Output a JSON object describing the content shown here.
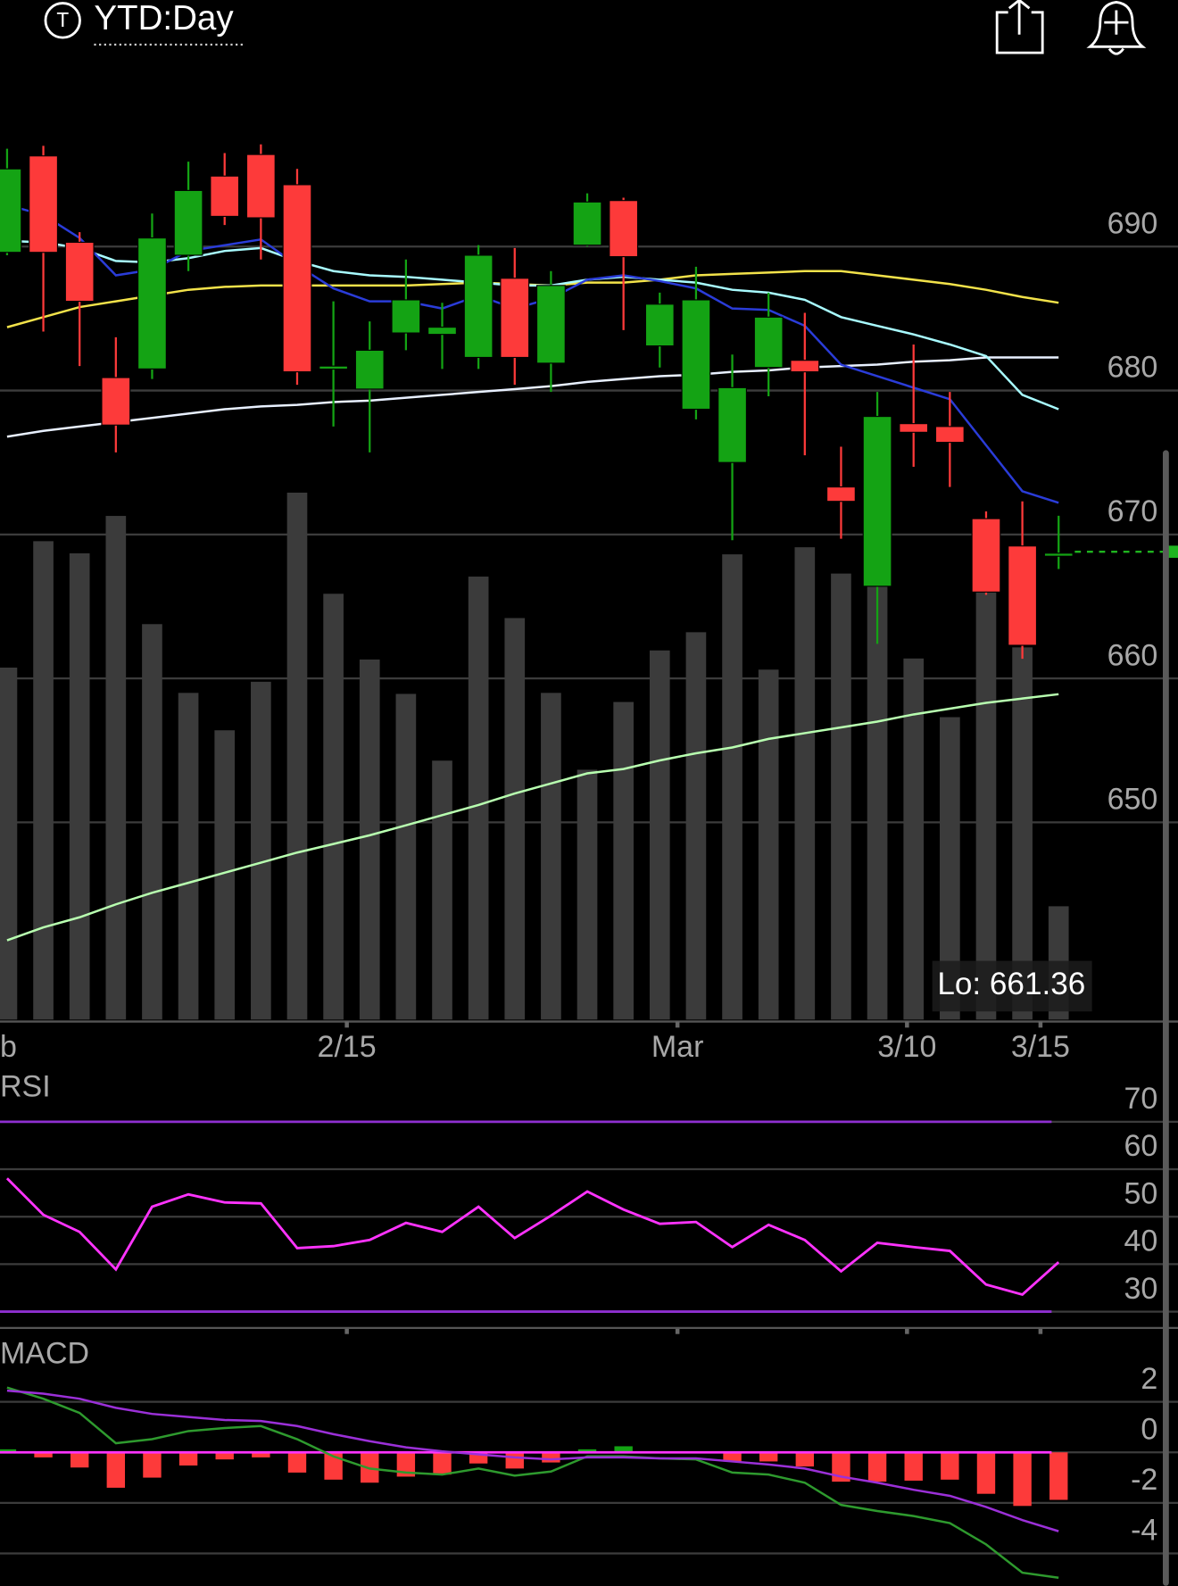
{
  "header": {
    "icon": "T",
    "title": "YTD:Day"
  },
  "chart_data": [
    {
      "type": "candlestick",
      "open": [
        689.6,
        696.3,
        690.3,
        680.9,
        681.5,
        689.4,
        694.9,
        696.4,
        694.3,
        681.6,
        680.1,
        684.0,
        683.9,
        682.3,
        687.8,
        681.9,
        690.1,
        693.2,
        683.1,
        678.7,
        675.0,
        681.6,
        682.1,
        673.3,
        666.4,
        677.7,
        677.5,
        671.1,
        669.2,
        668.6
      ],
      "high": [
        696.8,
        697.0,
        691.0,
        683.7,
        692.3,
        695.9,
        696.5,
        697.1,
        695.4,
        686.2,
        684.8,
        689.1,
        686.1,
        690.1,
        689.9,
        688.3,
        693.7,
        693.4,
        686.8,
        688.6,
        682.5,
        686.8,
        685.4,
        676.1,
        679.9,
        683.2,
        679.9,
        671.6,
        672.3,
        671.3
      ],
      "low": [
        689.4,
        684.1,
        681.7,
        675.7,
        680.8,
        688.3,
        691.5,
        689.1,
        680.4,
        677.5,
        675.7,
        682.8,
        681.5,
        681.5,
        680.4,
        679.9,
        690.0,
        684.2,
        681.6,
        678.0,
        669.6,
        679.6,
        675.5,
        669.7,
        662.4,
        674.7,
        673.3,
        665.8,
        661.36,
        667.6
      ],
      "close": [
        695.4,
        689.6,
        686.2,
        677.6,
        690.6,
        693.9,
        692.1,
        692.0,
        681.3,
        681.7,
        682.8,
        686.3,
        684.4,
        689.4,
        682.3,
        687.3,
        693.1,
        689.3,
        686.0,
        686.3,
        680.2,
        685.1,
        681.3,
        672.3,
        678.2,
        677.1,
        676.4,
        666.0,
        662.3,
        668.7
      ],
      "up_color": "#14a314",
      "down_color": "#fd3a3a",
      "volume": [
        348,
        473,
        461,
        498,
        391,
        323,
        286,
        334,
        521,
        421,
        356,
        322,
        256,
        438,
        397,
        323,
        247,
        314,
        365,
        383,
        460,
        346,
        467,
        441,
        428,
        357,
        299,
        423,
        368,
        112
      ],
      "volume_color": "#3b3b3b",
      "lines": [
        {
          "color": "#b8ffb0",
          "values": [
            641.8,
            642.7,
            643.4,
            644.3,
            645.1,
            645.8,
            646.5,
            647.2,
            647.9,
            648.5,
            649.1,
            649.8,
            650.5,
            651.2,
            652.0,
            652.7,
            653.4,
            653.7,
            654.3,
            654.8,
            655.2,
            655.8,
            656.2,
            656.6,
            657.0,
            657.5,
            657.9,
            658.3,
            658.6,
            658.9
          ]
        },
        {
          "color": "#e8f0ff",
          "values": [
            676.8,
            677.2,
            677.5,
            677.8,
            678.1,
            678.4,
            678.7,
            678.9,
            679.0,
            679.2,
            679.3,
            679.5,
            679.7,
            679.9,
            680.1,
            680.3,
            680.6,
            680.8,
            681.0,
            681.1,
            681.3,
            681.4,
            681.6,
            681.7,
            681.8,
            682.0,
            682.1,
            682.3,
            682.3,
            682.3
          ]
        },
        {
          "color": "#f2e24a",
          "values": [
            684.4,
            685.1,
            685.8,
            686.2,
            686.6,
            687.0,
            687.2,
            687.3,
            687.3,
            687.3,
            687.3,
            687.3,
            687.4,
            687.5,
            687.4,
            687.3,
            687.5,
            687.5,
            687.7,
            688.0,
            688.1,
            688.2,
            688.3,
            688.3,
            688.0,
            687.7,
            687.4,
            687.0,
            686.5,
            686.1
          ]
        },
        {
          "color": "#a8fbff",
          "values": [
            690.4,
            690.3,
            689.9,
            689.0,
            688.9,
            689.2,
            689.7,
            689.9,
            689.0,
            688.3,
            688.0,
            687.9,
            687.7,
            687.5,
            687.3,
            687.3,
            687.7,
            687.9,
            687.7,
            687.5,
            687.0,
            686.8,
            686.3,
            685.1,
            684.5,
            683.9,
            683.2,
            682.4,
            679.7,
            678.7
          ]
        },
        {
          "color": "#2a3cd8",
          "values": [
            692.9,
            692.2,
            690.6,
            688.0,
            688.4,
            689.7,
            690.1,
            690.5,
            688.7,
            687.1,
            686.2,
            686.2,
            685.7,
            686.6,
            685.7,
            686.4,
            687.7,
            688.0,
            687.6,
            687.1,
            685.7,
            685.6,
            684.5,
            681.8,
            681.0,
            680.2,
            679.4,
            676.2,
            673.0,
            672.2
          ]
        }
      ],
      "ylim": [
        636.3,
        701.5
      ],
      "yticks": [
        650,
        660,
        670,
        680,
        690
      ],
      "grid": true,
      "x_labels": [
        "b",
        "2/15",
        "Mar",
        "3/10",
        "3/15"
      ],
      "annotation": "Lo: 661.36",
      "last_price": 668.8,
      "last_color": "#1fb41f"
    },
    {
      "type": "line",
      "title": "RSI",
      "values": [
        58.1,
        50.4,
        46.8,
        38.9,
        52.1,
        54.7,
        53.0,
        52.8,
        43.4,
        43.8,
        45.1,
        48.7,
        46.8,
        52.1,
        45.5,
        50.2,
        55.3,
        51.5,
        48.5,
        48.9,
        43.6,
        48.3,
        45.1,
        38.5,
        44.5,
        43.6,
        42.8,
        35.7,
        33.6,
        40.4
      ],
      "color": "#ff33ff",
      "ylim": [
        27.2,
        79.4
      ],
      "yticks": [
        30,
        40,
        50,
        60,
        70
      ],
      "bands": [
        30,
        70
      ],
      "band_color": "#8e2fd0",
      "grid": true
    },
    {
      "type": "macd",
      "title": "MACD",
      "macd": [
        2.56,
        2.12,
        1.56,
        0.36,
        0.52,
        0.84,
        0.96,
        1.04,
        0.52,
        -0.16,
        -0.64,
        -0.8,
        -0.88,
        -0.64,
        -0.92,
        -0.76,
        -0.16,
        -0.16,
        -0.24,
        -0.28,
        -0.8,
        -0.88,
        -1.2,
        -2.08,
        -2.32,
        -2.52,
        -2.8,
        -3.64,
        -4.76,
        -4.96
      ],
      "signal": [
        2.44,
        2.32,
        2.12,
        1.76,
        1.52,
        1.4,
        1.28,
        1.24,
        1.04,
        0.72,
        0.44,
        0.2,
        0.04,
        -0.08,
        -0.2,
        -0.28,
        -0.2,
        -0.2,
        -0.24,
        -0.24,
        -0.36,
        -0.48,
        -0.64,
        -0.96,
        -1.2,
        -1.48,
        -1.72,
        -2.16,
        -2.68,
        -3.12
      ],
      "histogram": [
        0.12,
        -0.2,
        -0.6,
        -1.4,
        -1.0,
        -0.52,
        -0.28,
        -0.2,
        -0.8,
        -1.08,
        -1.2,
        -0.96,
        -0.88,
        -0.44,
        -0.64,
        -0.4,
        0.12,
        0.24,
        0.0,
        0.0,
        -0.36,
        -0.36,
        -0.56,
        -1.16,
        -1.16,
        -1.12,
        -1.08,
        -1.64,
        -2.12,
        -1.88
      ],
      "macd_color": "#2e9a2e",
      "signal_color": "#9b30d8",
      "up_color": "#14a314",
      "down_color": "#fd3a3a",
      "zero_color": "#ff33ff",
      "ylim": [
        -5.28,
        4.64
      ],
      "yticks": [
        -4,
        -2,
        0,
        2
      ],
      "grid": true
    }
  ]
}
